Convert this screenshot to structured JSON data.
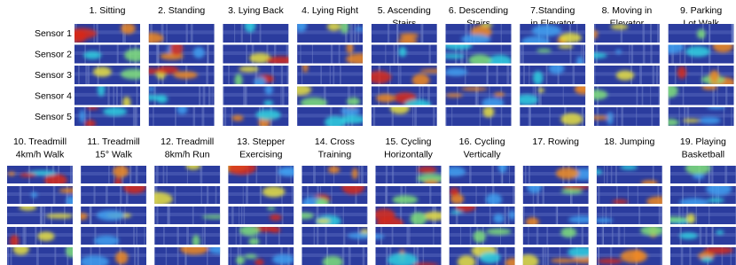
{
  "row_labels": [
    "Sensor 1",
    "Sensor 2",
    "Sensor 3",
    "Sensor 4",
    "Sensor 5"
  ],
  "top_columns": [
    [
      "1. Sitting"
    ],
    [
      "2. Standing"
    ],
    [
      "3. Lying Back"
    ],
    [
      "4. Lying Right"
    ],
    [
      "5. Ascending",
      "Stairs"
    ],
    [
      "6. Descending",
      "Stairs"
    ],
    [
      "7.Standing",
      "in Elevator"
    ],
    [
      "8. Moving in",
      "Elevator"
    ],
    [
      "9. Parking",
      "Lot Walk"
    ]
  ],
  "bottom_columns": [
    [
      "10. Treadmill",
      "4km/h Walk"
    ],
    [
      "11. Treadmill",
      "15° Walk"
    ],
    [
      "12. Treadmill",
      "8km/h Run"
    ],
    [
      "13. Stepper",
      "Exercising"
    ],
    [
      "14. Cross",
      "Training"
    ],
    [
      "15. Cycling",
      "Horizontally"
    ],
    [
      "16. Cycling",
      "Vertically"
    ],
    [
      "17. Rowing"
    ],
    [
      "18. Jumping"
    ],
    [
      "19. Playing",
      "Basketball"
    ]
  ]
}
